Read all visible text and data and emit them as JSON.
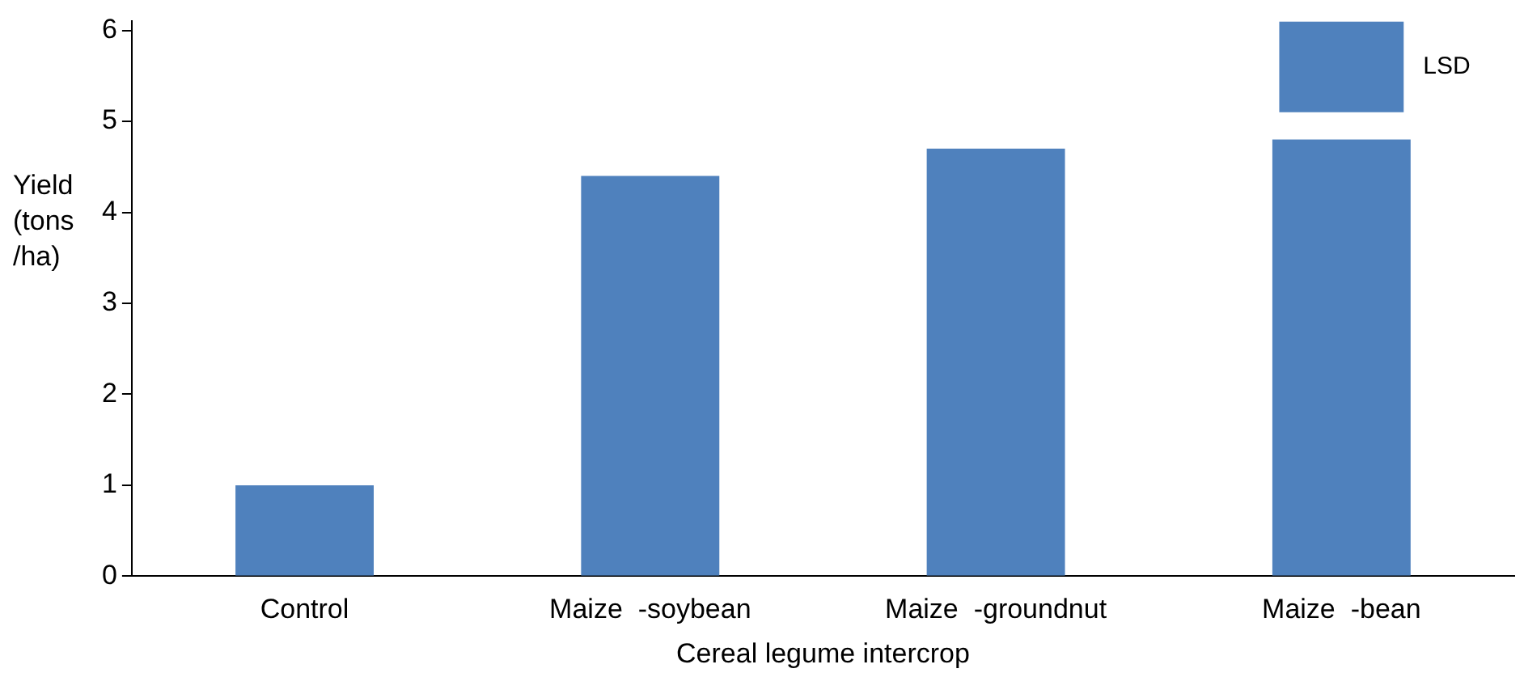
{
  "chart_data": {
    "type": "bar",
    "xlabel": "Cereal legume intercrop",
    "ylabel": "Yield (tons /ha)",
    "categories": [
      "Control",
      "Maize  -soybean",
      "Maize  -groundnut",
      "Maize  -bean"
    ],
    "series": [
      {
        "color": "#4f81bd",
        "values": [
          1.0,
          4.4,
          4.7,
          4.8
        ]
      },
      {
        "name": "LSD",
        "color": "#4f81bd",
        "values": [
          null,
          null,
          null,
          1.0
        ],
        "base": [
          null,
          null,
          null,
          5.1
        ]
      }
    ],
    "ylim": [
      0,
      6.1
    ],
    "yticks": [
      0,
      1,
      2,
      3,
      4,
      5,
      6
    ],
    "grid": false,
    "legend": false
  }
}
